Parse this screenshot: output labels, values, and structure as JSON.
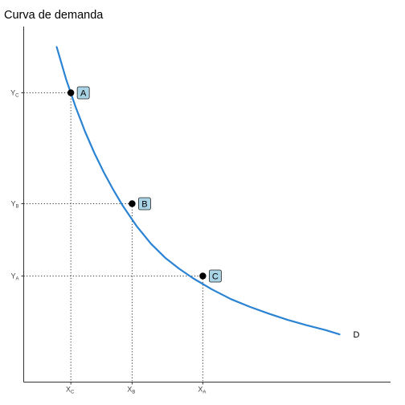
{
  "chart_data": {
    "type": "line",
    "title": "Curva de demanda",
    "xlabel": "",
    "ylabel": "",
    "grid": false,
    "xlim": [
      0,
      7.8
    ],
    "ylim": [
      0,
      7.8
    ],
    "series": [
      {
        "name": "D",
        "x": [
          0.7,
          0.9,
          1.1,
          1.3,
          1.5,
          1.7,
          1.9,
          2.1,
          2.4,
          2.7,
          3.0,
          3.3,
          3.6,
          4.0,
          4.4,
          4.8,
          5.2,
          5.6,
          6.0,
          6.4,
          6.7
        ],
        "y": [
          6.95,
          6.28,
          5.71,
          5.2,
          4.75,
          4.35,
          3.99,
          3.66,
          3.23,
          2.87,
          2.58,
          2.35,
          2.15,
          1.92,
          1.72,
          1.56,
          1.42,
          1.29,
          1.18,
          1.08,
          0.99
        ],
        "color": "#2b83d3"
      }
    ],
    "points": [
      {
        "label": "A",
        "x": 1.0,
        "y": 6.0
      },
      {
        "label": "B",
        "x": 2.3,
        "y": 3.7
      },
      {
        "label": "C",
        "x": 3.8,
        "y": 2.2
      }
    ],
    "x_ticks": [
      {
        "main": "X",
        "sub": "C",
        "value": 1.0
      },
      {
        "main": "X",
        "sub": "B",
        "value": 2.3
      },
      {
        "main": "X",
        "sub": "A",
        "value": 3.8
      }
    ],
    "y_ticks": [
      {
        "main": "Y",
        "sub": "C",
        "value": 6.0
      },
      {
        "main": "Y",
        "sub": "B",
        "value": 3.7
      },
      {
        "main": "Y",
        "sub": "A",
        "value": 2.2
      }
    ],
    "colors": {
      "curve": "#2b83d3",
      "label_fill": "#a9d4e6",
      "point": "#000000"
    }
  }
}
